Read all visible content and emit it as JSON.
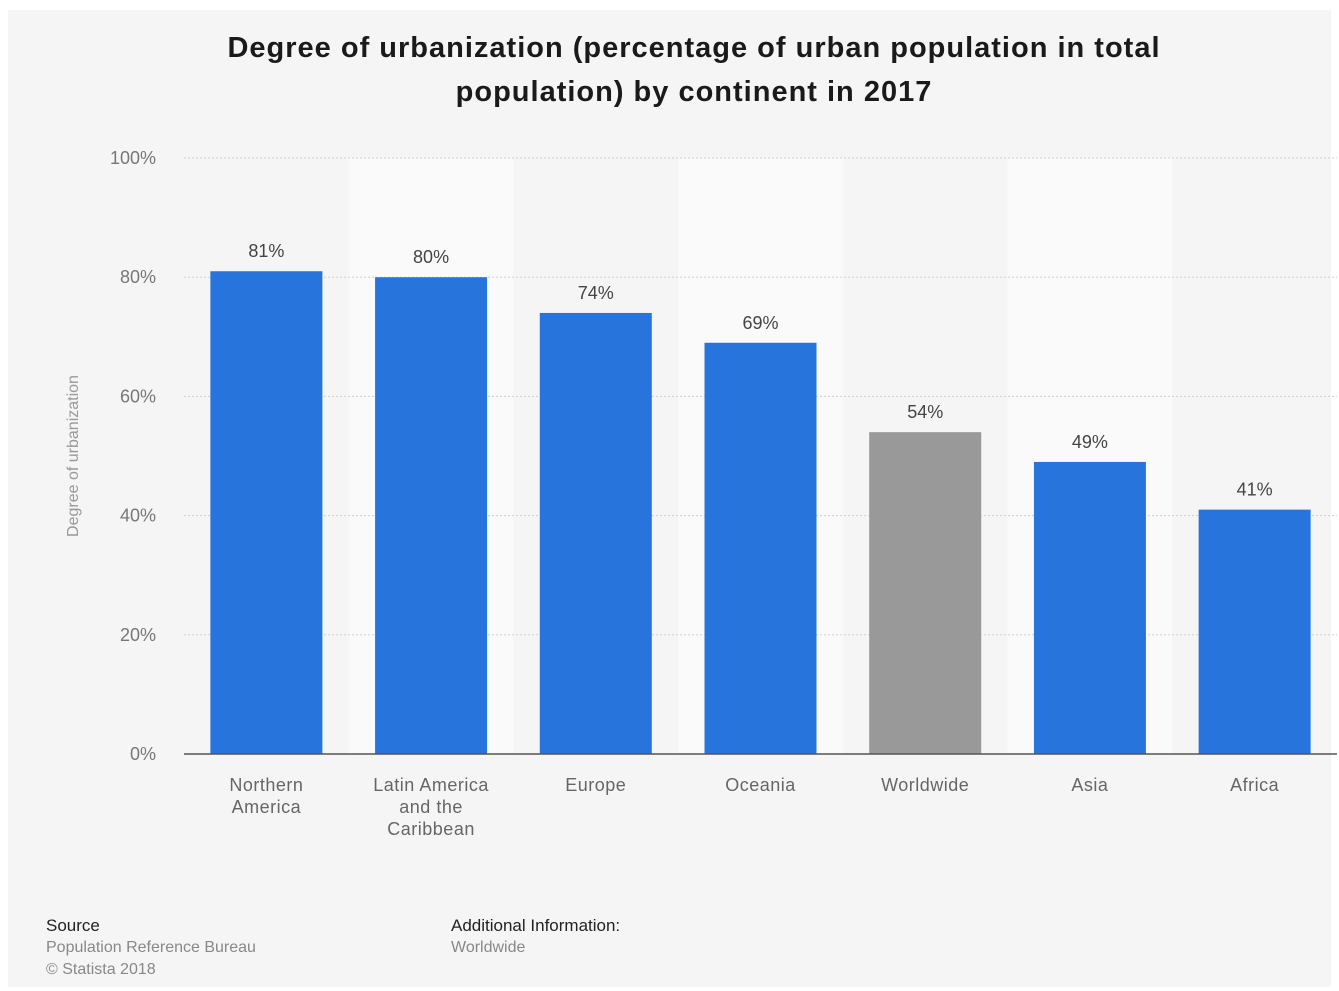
{
  "title_lines": [
    "Degree of urbanization (percentage of urban population in total",
    "population) by continent in 2017"
  ],
  "footer": {
    "source_heading": "Source",
    "source_name": "Population Reference Bureau",
    "copyright": "© Statista 2018",
    "additional_heading": "Additional Information:",
    "additional_value": "Worldwide"
  },
  "colors": {
    "bar": "#2874dd",
    "bar_highlight": "#999999",
    "background": "#f5f5f5",
    "stripe": "#fafafa"
  },
  "chart_data": {
    "type": "bar",
    "title": "Degree of urbanization (percentage of urban population in total population) by continent in 2017",
    "ylabel": "Degree of urbanization",
    "ylim": [
      0,
      100
    ],
    "yticks": [
      "0%",
      "20%",
      "40%",
      "60%",
      "80%",
      "100%"
    ],
    "ytick_values": [
      0,
      20,
      40,
      60,
      80,
      100
    ],
    "grid": true,
    "categories": [
      [
        "Northern",
        "America"
      ],
      [
        "Latin America",
        "and the",
        "Caribbean"
      ],
      [
        "Europe"
      ],
      [
        "Oceania"
      ],
      [
        "Worldwide"
      ],
      [
        "Asia"
      ],
      [
        "Africa"
      ]
    ],
    "values": [
      81,
      80,
      74,
      69,
      54,
      49,
      41
    ],
    "value_labels": [
      "81%",
      "80%",
      "74%",
      "69%",
      "54%",
      "49%",
      "41%"
    ],
    "highlight": [
      false,
      false,
      false,
      false,
      true,
      false,
      false
    ]
  }
}
